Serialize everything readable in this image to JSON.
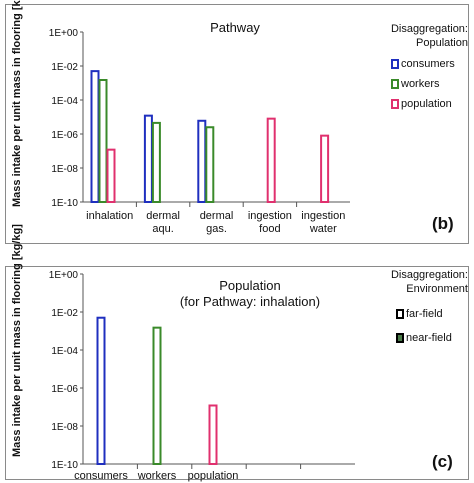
{
  "chart_data": [
    {
      "type": "bar",
      "title": "Pathway",
      "ylabel": "Mass intake per unit mass in flooring [kg/kg]",
      "yscale": "log",
      "ylim": [
        "1E-10",
        "1E+00"
      ],
      "yticks": [
        "1E+00",
        "1E-02",
        "1E-04",
        "1E-06",
        "1E-08",
        "1E-10"
      ],
      "categories": [
        "inhalation",
        "dermal aqu.",
        "dermal gas.",
        "ingestion food",
        "ingestion water"
      ],
      "category_lines": [
        [
          "inhalation"
        ],
        [
          "dermal",
          "aqu."
        ],
        [
          "dermal",
          "gas."
        ],
        [
          "ingestion",
          "food"
        ],
        [
          "ingestion",
          "water"
        ]
      ],
      "legend_title": [
        "Disaggregation:",
        "Population"
      ],
      "legend_position": "right",
      "series": [
        {
          "name": "consumers",
          "color": "#1f2fbf",
          "values": [
            0.005,
            1.2e-05,
            6e-06,
            null,
            null
          ]
        },
        {
          "name": "workers",
          "color": "#3a8a2a",
          "values": [
            0.0015,
            4.5e-06,
            2.5e-06,
            null,
            null
          ]
        },
        {
          "name": "population",
          "color": "#e0306e",
          "values": [
            1.2e-07,
            null,
            null,
            8e-06,
            8e-07
          ]
        }
      ],
      "panel_label": "(b)"
    },
    {
      "type": "bar",
      "title": [
        "Population",
        "(for Pathway: inhalation)"
      ],
      "ylabel": "Mass intake per unit mass in flooring [kg/kg]",
      "yscale": "log",
      "ylim": [
        "1E-10",
        "1E+00"
      ],
      "yticks": [
        "1E+00",
        "1E-02",
        "1E-04",
        "1E-06",
        "1E-08",
        "1E-10"
      ],
      "categories": [
        "consumers",
        "workers",
        "population"
      ],
      "legend_title": [
        "Disaggregation:",
        "Environment"
      ],
      "legend_position": "right",
      "legend_entries": [
        {
          "name": "far-field",
          "fill": "#ffffff"
        },
        {
          "name": "near-field",
          "fill": "#4a7a48"
        }
      ],
      "bars": [
        {
          "category": "consumers",
          "value": 0.005,
          "color": "#1f2fbf"
        },
        {
          "category": "workers",
          "value": 0.0015,
          "color": "#3a8a2a"
        },
        {
          "category": "population",
          "value": 1.2e-07,
          "color": "#e0306e"
        }
      ],
      "panel_label": "(c)"
    }
  ]
}
